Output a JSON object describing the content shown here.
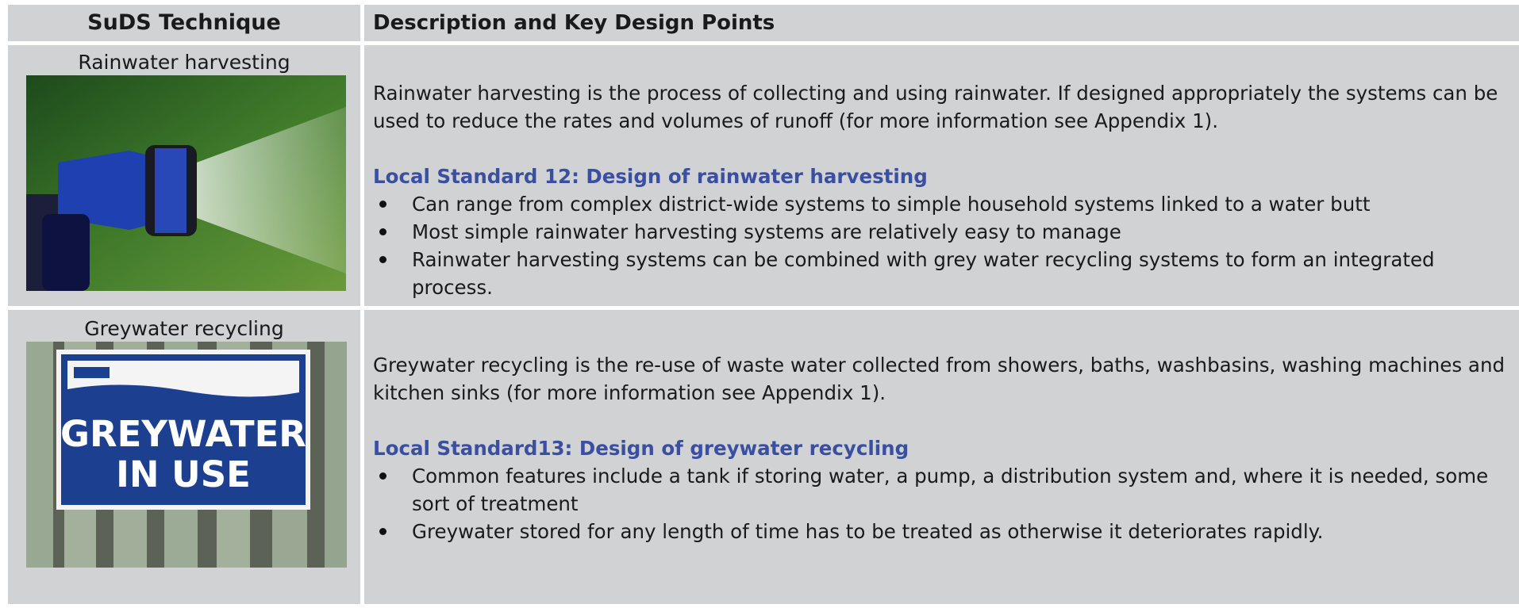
{
  "header": {
    "technique": "SuDS Technique",
    "description": "Description and Key Design Points"
  },
  "rows": [
    {
      "technique": "Rainwater harvesting",
      "description": "Rainwater harvesting is the process of collecting and using rainwater. If designed appropriately the systems can be used to reduce the rates and volumes of runoff (for more information see Appendix 1).",
      "standard": "Local Standard 12: Design of rainwater harvesting",
      "bullets": [
        "Can range from complex district-wide systems to simple household systems linked to a water butt",
        "Most simple rainwater harvesting systems are relatively easy to manage",
        "Rainwater harvesting systems can be combined with grey water recycling systems to form an integrated process."
      ]
    },
    {
      "technique": "Greywater recycling",
      "description": "Greywater recycling is the re-use of waste water collected from showers, baths, washbasins, washing machines and kitchen sinks (for more information see Appendix 1).",
      "standard": "Local Standard13: Design of greywater recycling",
      "bullets": [
        "Common features include a tank if storing water, a pump, a distribution system and, where it is needed, some sort of treatment",
        "Greywater stored for any length of time has to be treated as otherwise it deteriorates rapidly."
      ],
      "sign": [
        "GREYWATER",
        "IN USE"
      ]
    }
  ]
}
